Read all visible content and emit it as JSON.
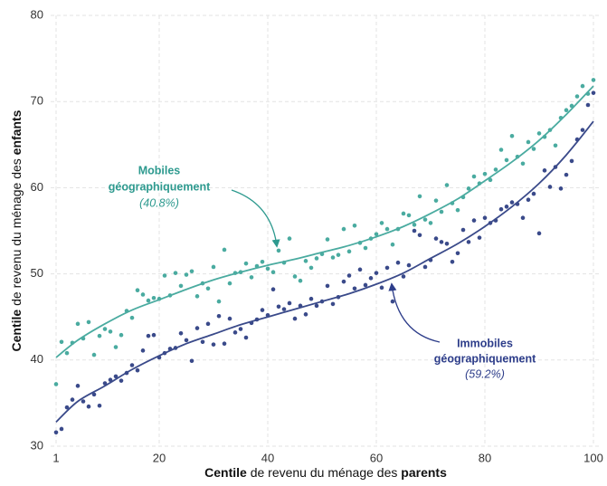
{
  "chart_data": {
    "type": "scatter",
    "x_label": [
      "Centile",
      " de revenu du ménage des ",
      "parents"
    ],
    "y_label": [
      "Centile",
      " de revenu du ménage des ",
      "enfants"
    ],
    "x": [
      1,
      2,
      3,
      4,
      5,
      6,
      7,
      8,
      9,
      10,
      11,
      12,
      13,
      14,
      15,
      16,
      17,
      18,
      19,
      20,
      21,
      22,
      23,
      24,
      25,
      26,
      27,
      28,
      29,
      30,
      31,
      32,
      33,
      34,
      35,
      36,
      37,
      38,
      39,
      40,
      41,
      42,
      43,
      44,
      45,
      46,
      47,
      48,
      49,
      50,
      51,
      52,
      53,
      54,
      55,
      56,
      57,
      58,
      59,
      60,
      61,
      62,
      63,
      64,
      65,
      66,
      67,
      68,
      69,
      70,
      71,
      72,
      73,
      74,
      75,
      76,
      77,
      78,
      79,
      80,
      81,
      82,
      83,
      84,
      85,
      86,
      87,
      88,
      89,
      90,
      91,
      92,
      93,
      94,
      95,
      96,
      97,
      98,
      99,
      100
    ],
    "fit_x": [
      1,
      5,
      10,
      15,
      20,
      25,
      30,
      35,
      40,
      45,
      50,
      55,
      60,
      65,
      70,
      75,
      80,
      85,
      90,
      95,
      100
    ],
    "series": [
      {
        "color": "#4aaba0",
        "mode": "markers",
        "values": [
          37.2,
          42.1,
          40.8,
          42.0,
          44.2,
          42.5,
          44.4,
          40.6,
          42.8,
          43.6,
          43.3,
          41.5,
          42.9,
          45.7,
          44.9,
          48.1,
          47.6,
          46.9,
          47.2,
          47.1,
          49.8,
          47.5,
          50.1,
          48.6,
          49.9,
          50.3,
          47.4,
          48.9,
          48.3,
          50.8,
          46.8,
          52.8,
          48.9,
          50.1,
          50.2,
          51.2,
          49.6,
          50.9,
          51.4,
          50.6,
          50.2,
          52.7,
          51.3,
          54.1,
          49.7,
          49.2,
          51.5,
          50.7,
          51.8,
          52.3,
          54.0,
          51.9,
          52.2,
          55.2,
          52.6,
          55.6,
          53.6,
          53.0,
          54.1,
          54.6,
          55.9,
          55.2,
          53.4,
          55.2,
          57.0,
          56.8,
          55.7,
          59.0,
          56.3,
          55.9,
          58.5,
          57.2,
          60.3,
          58.2,
          57.4,
          58.9,
          59.9,
          61.3,
          60.5,
          61.6,
          60.9,
          62.1,
          64.4,
          63.2,
          66.0,
          63.6,
          62.8,
          65.3,
          64.5,
          66.3,
          65.9,
          66.7,
          64.9,
          68.1,
          69.0,
          69.5,
          70.6,
          71.8,
          70.9,
          72.5
        ]
      },
      {
        "color": "#3a4a8a",
        "mode": "markers",
        "values": [
          31.6,
          32.0,
          34.5,
          35.4,
          37.0,
          35.2,
          34.6,
          36.0,
          34.7,
          37.3,
          37.7,
          38.1,
          37.6,
          38.5,
          39.4,
          38.8,
          41.1,
          42.8,
          42.9,
          40.3,
          40.8,
          41.3,
          41.4,
          43.1,
          42.3,
          39.9,
          43.7,
          42.1,
          44.2,
          41.8,
          45.1,
          41.9,
          44.8,
          43.2,
          43.6,
          42.6,
          44.3,
          44.7,
          45.8,
          45.2,
          48.2,
          46.2,
          45.9,
          46.6,
          44.8,
          46.3,
          45.3,
          47.1,
          46.3,
          46.8,
          48.6,
          46.5,
          47.3,
          49.1,
          49.8,
          48.3,
          50.5,
          48.7,
          49.5,
          50.1,
          48.4,
          50.7,
          46.8,
          51.3,
          49.7,
          51.0,
          55.0,
          54.5,
          50.8,
          51.6,
          54.1,
          53.7,
          53.5,
          51.4,
          52.4,
          55.1,
          53.7,
          56.2,
          54.2,
          56.5,
          55.9,
          56.2,
          57.5,
          57.8,
          58.3,
          58.1,
          56.5,
          58.6,
          59.3,
          54.7,
          62.0,
          60.1,
          62.4,
          59.9,
          61.5,
          63.1,
          65.6,
          66.7,
          69.6,
          71.0
        ]
      },
      {
        "color": "#4aaba0",
        "mode": "line",
        "values": [
          40.3,
          42.3,
          44.2,
          45.8,
          47.0,
          48.2,
          49.3,
          50.2,
          51.0,
          51.7,
          52.5,
          53.3,
          54.3,
          55.5,
          57.0,
          58.7,
          60.8,
          63.0,
          65.5,
          68.5,
          71.8
        ]
      },
      {
        "color": "#3a4a8a",
        "mode": "line",
        "values": [
          32.8,
          35.2,
          37.0,
          38.9,
          40.5,
          41.9,
          43.0,
          44.1,
          45.0,
          45.9,
          46.8,
          47.7,
          48.8,
          50.1,
          51.8,
          53.5,
          55.5,
          57.8,
          60.5,
          63.8,
          67.7
        ]
      }
    ],
    "annotations": [
      {
        "lines": [
          "Mobiles",
          "géographiquement",
          "(40.8%)"
        ],
        "color": "#2e9a8f"
      },
      {
        "lines": [
          "Immobiles",
          "géographiquement",
          "(59.2%)"
        ],
        "color": "#2d3d8a"
      }
    ],
    "xlim": [
      0,
      101
    ],
    "ylim": [
      30,
      80
    ],
    "xticks": [
      1,
      20,
      40,
      60,
      80,
      100
    ],
    "yticks": [
      30,
      40,
      50,
      60,
      70,
      80
    ],
    "grid": true
  }
}
